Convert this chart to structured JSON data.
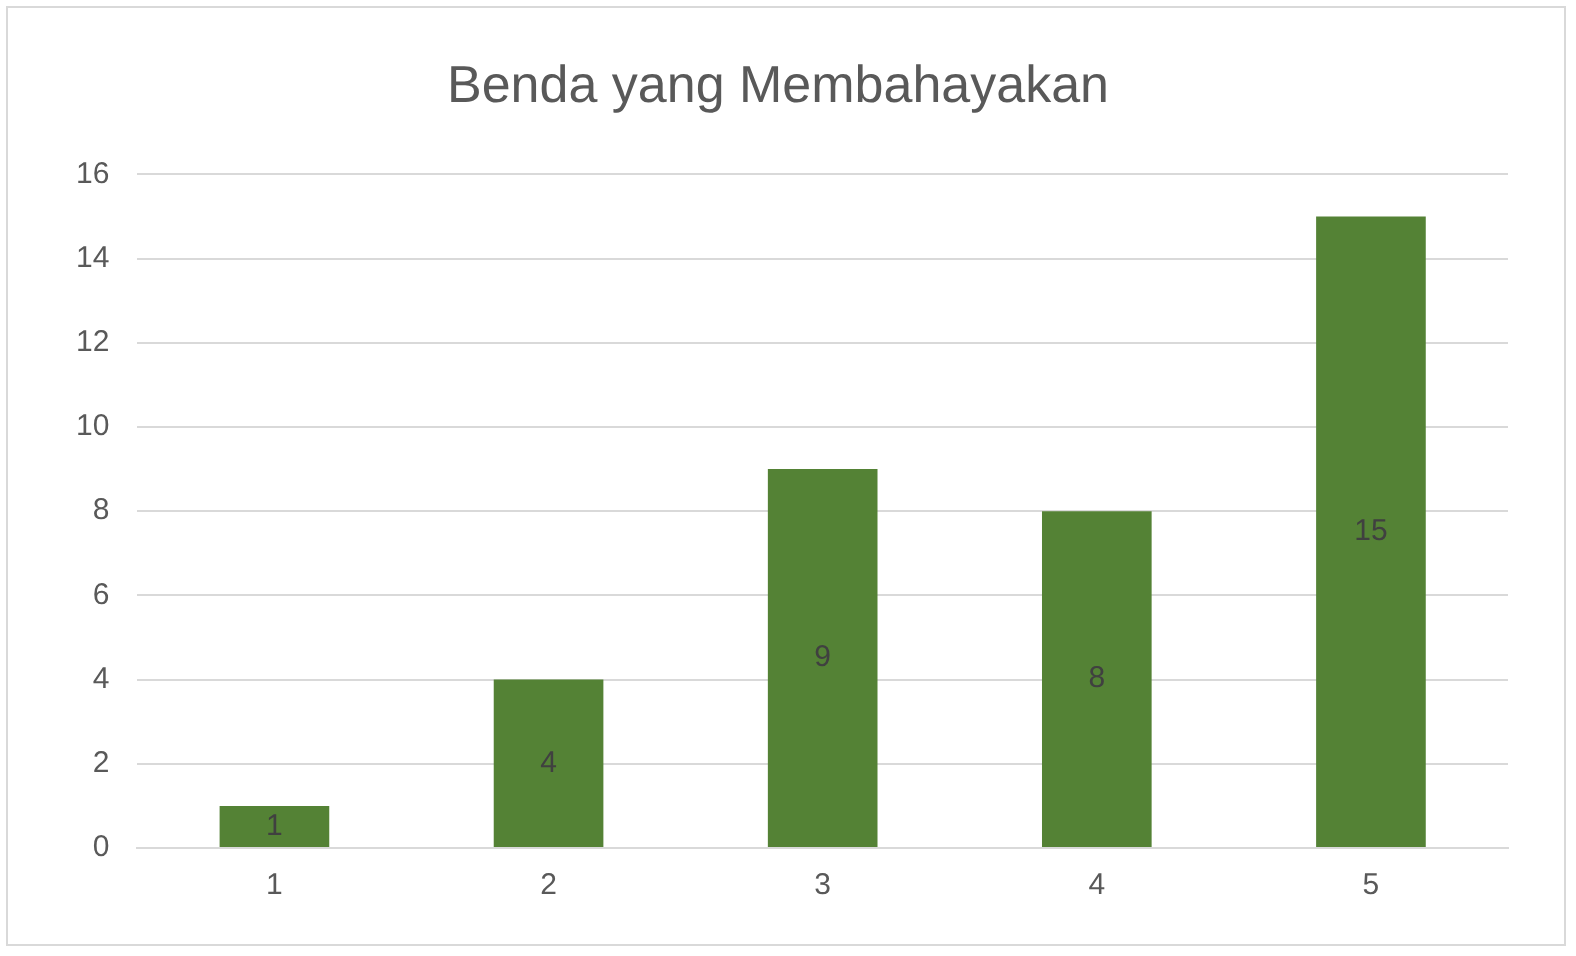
{
  "chart_data": {
    "type": "bar",
    "title": "Benda yang Membahayakan",
    "categories": [
      "1",
      "2",
      "3",
      "4",
      "5"
    ],
    "values": [
      1,
      4,
      9,
      8,
      15
    ],
    "color": "#548235",
    "ylim": [
      0,
      16
    ],
    "yticks": [
      0,
      2,
      4,
      6,
      8,
      10,
      12,
      14,
      16
    ],
    "grid": "y",
    "data_labels": true,
    "legend": false
  }
}
